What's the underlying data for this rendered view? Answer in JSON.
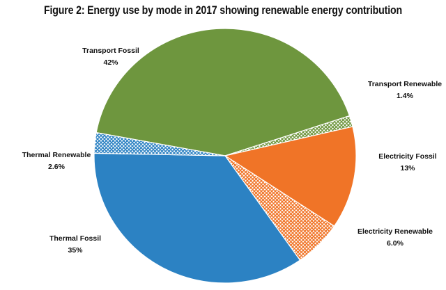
{
  "chart_data": {
    "type": "pie",
    "title": "Figure 2: Energy use by mode in 2017 showing renewable energy contribution",
    "slices": [
      {
        "name": "Transport Fossil",
        "value": 42,
        "label": "42%",
        "color": "#6e963e",
        "pattern": "solid"
      },
      {
        "name": "Transport Renewable",
        "value": 1.4,
        "label": "1.4%",
        "color": "#6e963e",
        "pattern": "crosshatch"
      },
      {
        "name": "Electricity Fossil",
        "value": 13,
        "label": "13%",
        "color": "#f07427",
        "pattern": "solid"
      },
      {
        "name": "Electricity Renewable",
        "value": 6.0,
        "label": "6.0%",
        "color": "#f07427",
        "pattern": "crosshatch"
      },
      {
        "name": "Thermal Fossil",
        "value": 35,
        "label": "35%",
        "color": "#2c82c3",
        "pattern": "solid"
      },
      {
        "name": "Thermal Renewable",
        "value": 2.6,
        "label": "2.6%",
        "color": "#2c82c3",
        "pattern": "crosshatch"
      }
    ],
    "legend": "none",
    "labels": "outside"
  }
}
